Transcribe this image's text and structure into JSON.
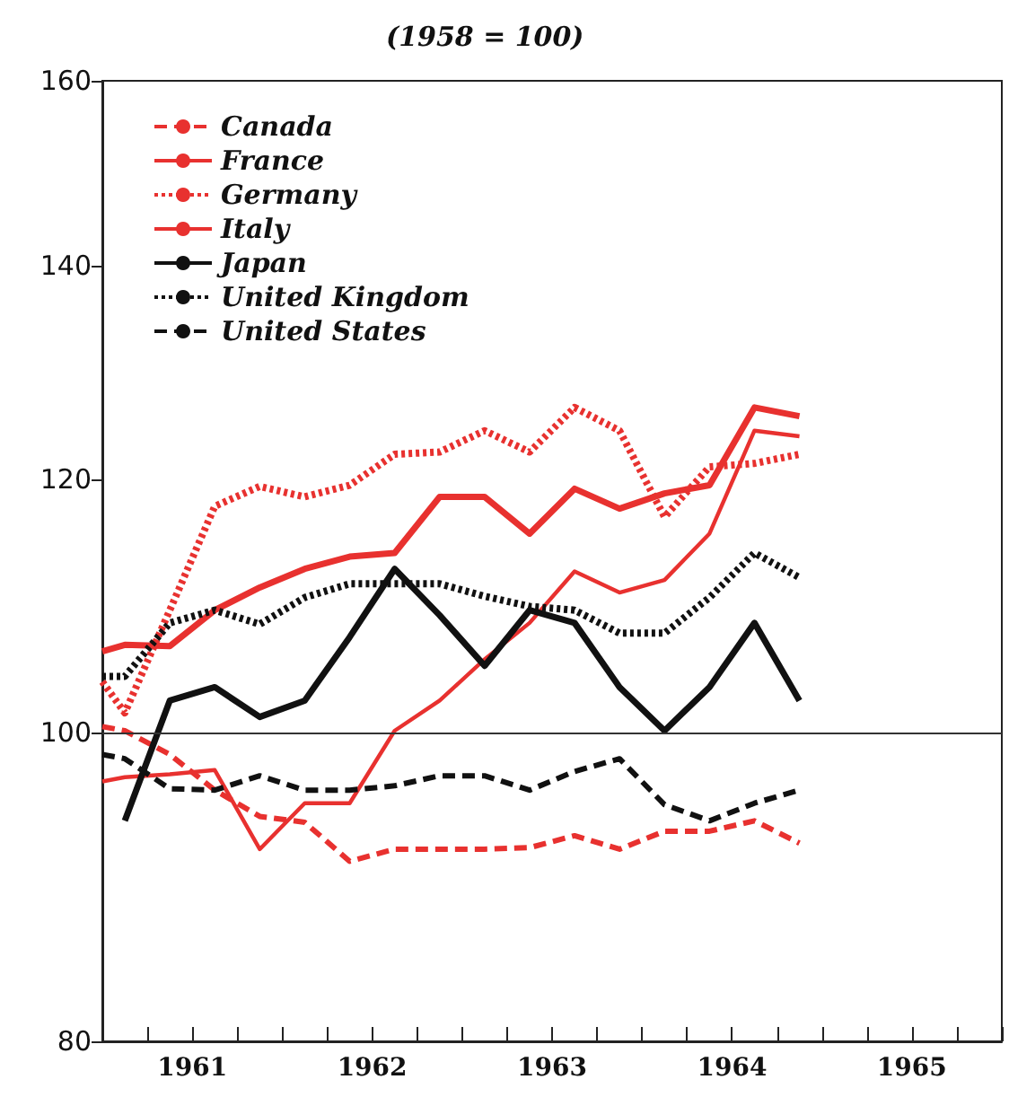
{
  "chart_data": {
    "type": "line",
    "title": "(1958 = 100)",
    "x": [
      1961,
      1961.125,
      1961.375,
      1961.625,
      1961.875,
      1962.125,
      1962.375,
      1962.625,
      1962.875,
      1963.125,
      1963.375,
      1963.625,
      1963.875,
      1964.125,
      1964.375,
      1964.625,
      1964.875
    ],
    "series": [
      {
        "name": "Canada",
        "color": "#e8312f",
        "line_style": "dashed",
        "values": [
          100.4,
          100.1,
          98.4,
          95.9,
          94.1,
          93.7,
          91.1,
          91.9,
          91.9,
          91.9,
          92.0,
          92.8,
          91.9,
          93.1,
          93.1,
          93.8,
          92.3
        ]
      },
      {
        "name": "France",
        "color": "#e8312f",
        "line_style": "solid",
        "values": [
          106.0,
          106.5,
          106.4,
          109.2,
          111.0,
          112.5,
          113.5,
          113.8,
          118.5,
          118.5,
          115.4,
          119.2,
          117.5,
          118.8,
          119.5,
          126.4,
          125.6
        ]
      },
      {
        "name": "Germany",
        "color": "#e8312f",
        "line_style": "dotted",
        "values": [
          103.7,
          101.4,
          109.2,
          117.7,
          119.4,
          118.5,
          119.5,
          122.2,
          122.4,
          124.3,
          122.4,
          126.4,
          124.3,
          116.8,
          121.1,
          121.4,
          122.2
        ]
      },
      {
        "name": "Italy",
        "color": "#e8312f",
        "line_style": "solid",
        "values": [
          96.5,
          96.8,
          97.0,
          97.3,
          91.9,
          95.0,
          95.0,
          100.1,
          102.3,
          105.4,
          108.2,
          112.3,
          110.6,
          111.6,
          115.4,
          124.3,
          123.8
        ]
      },
      {
        "name": "Japan",
        "color": "#111111",
        "line_style": "solid",
        "values": [
          null,
          93.8,
          102.3,
          103.3,
          101.1,
          102.3,
          107.1,
          112.5,
          108.8,
          104.9,
          109.2,
          108.2,
          103.3,
          100.1,
          103.3,
          108.2,
          102.3
        ]
      },
      {
        "name": "United Kingdom",
        "color": "#111111",
        "line_style": "dotted",
        "values": [
          104.1,
          104.1,
          108.2,
          109.2,
          108.1,
          110.2,
          111.3,
          111.3,
          111.3,
          110.3,
          109.5,
          109.2,
          107.4,
          107.4,
          110.2,
          113.8,
          111.8
        ]
      },
      {
        "name": "United States",
        "color": "#111111",
        "line_style": "dashed",
        "values": [
          98.4,
          98.1,
          96.0,
          95.9,
          96.9,
          95.9,
          95.9,
          96.2,
          96.9,
          96.9,
          95.9,
          97.2,
          98.1,
          94.9,
          93.8,
          95.0,
          95.9
        ]
      }
    ],
    "log": true,
    "xlim": [
      1961,
      1966
    ],
    "xticks": [
      {
        "value": 1961,
        "label": null
      },
      {
        "value": 1961.25,
        "label": null
      },
      {
        "value": 1961.5,
        "label": "1961"
      },
      {
        "value": 1961.75,
        "label": null
      },
      {
        "value": 1962,
        "label": null
      },
      {
        "value": 1962.25,
        "label": null
      },
      {
        "value": 1962.5,
        "label": "1962"
      },
      {
        "value": 1962.75,
        "label": null
      },
      {
        "value": 1963,
        "label": null
      },
      {
        "value": 1963.25,
        "label": null
      },
      {
        "value": 1963.5,
        "label": "1963"
      },
      {
        "value": 1963.75,
        "label": null
      },
      {
        "value": 1964,
        "label": null
      },
      {
        "value": 1964.25,
        "label": null
      },
      {
        "value": 1964.5,
        "label": "1964"
      },
      {
        "value": 1964.75,
        "label": null
      },
      {
        "value": 1965,
        "label": null
      },
      {
        "value": 1965.25,
        "label": null
      },
      {
        "value": 1965.5,
        "label": "1965"
      },
      {
        "value": 1965.75,
        "label": null
      },
      {
        "value": 1966,
        "label": null
      }
    ],
    "ylim": [
      80,
      160
    ],
    "yticks": [
      80,
      100,
      120,
      140,
      160
    ],
    "ref_lines": [
      {
        "axis": "y",
        "value": 100,
        "color": "#333333"
      }
    ],
    "legend": "top left",
    "marker": "none",
    "grid": false
  }
}
